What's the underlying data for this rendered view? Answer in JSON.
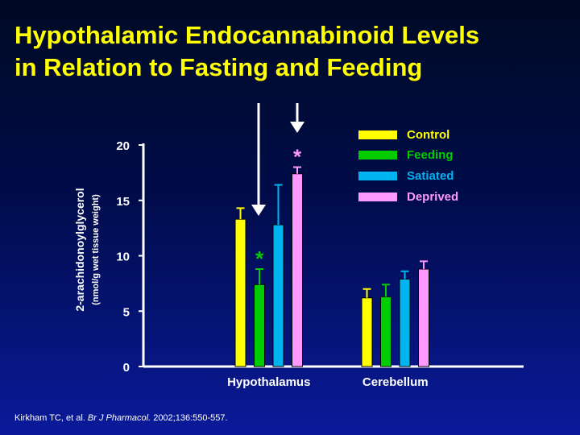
{
  "title": {
    "line1": "Hypothalamic Endocannabinoid Levels",
    "line2": "in Relation to Fasting and Feeding"
  },
  "citation": {
    "authors": "Kirkham TC, et al. ",
    "journal": "Br J Pharmacol.",
    "details": "  2002;136:550-557."
  },
  "chart_data": {
    "type": "bar",
    "categories": [
      "Hypothalamus",
      "Cerebellum"
    ],
    "series": [
      {
        "name": "Control",
        "values": [
          13.3,
          6.2
        ],
        "errors": [
          1.0,
          0.8
        ],
        "color": "#ffff00"
      },
      {
        "name": "Feeding",
        "values": [
          7.4,
          6.3
        ],
        "errors": [
          1.4,
          1.1
        ],
        "color": "#00cc00"
      },
      {
        "name": "Satiated",
        "values": [
          12.8,
          7.9
        ],
        "errors": [
          3.6,
          0.7
        ],
        "color": "#00b4f0"
      },
      {
        "name": "Deprived",
        "values": [
          17.4,
          8.8
        ],
        "errors": [
          0.6,
          0.7
        ],
        "color": "#ff99ff"
      }
    ],
    "significance": [
      {
        "series": "Feeding",
        "category": "Hypothalamus",
        "marker": "*",
        "color": "#00cc00"
      },
      {
        "series": "Deprived",
        "category": "Hypothalamus",
        "marker": "*",
        "color": "#ff99ff"
      }
    ],
    "arrows": [
      {
        "series": "Feeding",
        "category": "Hypothalamus",
        "direction": "down"
      },
      {
        "series": "Deprived",
        "category": "Hypothalamus",
        "direction": "down"
      }
    ],
    "ylabel": "2-arachidonoylglycerol",
    "ylabel_units": "(nmol/g wet tissue weight)",
    "ylim": [
      0,
      20
    ],
    "yticks": [
      0,
      5,
      10,
      15,
      20
    ],
    "legend_position": "top-right",
    "grid": false
  }
}
